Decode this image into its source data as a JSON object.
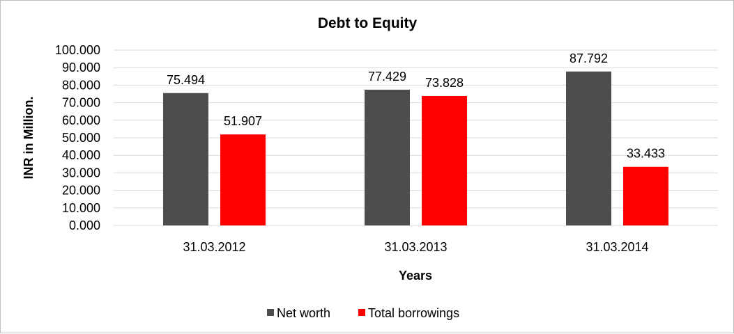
{
  "chart_data": {
    "type": "bar",
    "title": "Debt to Equity",
    "xlabel": "Years",
    "ylabel": "INR in Million.",
    "categories": [
      "31.03.2012",
      "31.03.2013",
      "31.03.2014"
    ],
    "series": [
      {
        "name": "Net worth",
        "values": [
          75.494,
          77.429,
          87.792
        ],
        "color": "#4d4d4d"
      },
      {
        "name": "Total borrowings",
        "values": [
          51.907,
          73.828,
          33.433
        ],
        "color": "#ff0000"
      }
    ],
    "ylim": [
      0,
      100
    ],
    "yticks": [
      "0.000",
      "10.000",
      "20.000",
      "30.000",
      "40.000",
      "50.000",
      "60.000",
      "70.000",
      "80.000",
      "90.000",
      "100.000"
    ],
    "ytick_values": [
      0,
      10,
      20,
      30,
      40,
      50,
      60,
      70,
      80,
      90,
      100
    ],
    "data_labels": [
      [
        "75.494",
        "77.429",
        "87.792"
      ],
      [
        "51.907",
        "73.828",
        "33.433"
      ]
    ],
    "grid": true,
    "legend_position": "bottom",
    "gridline_color": "#d9d9d9"
  }
}
